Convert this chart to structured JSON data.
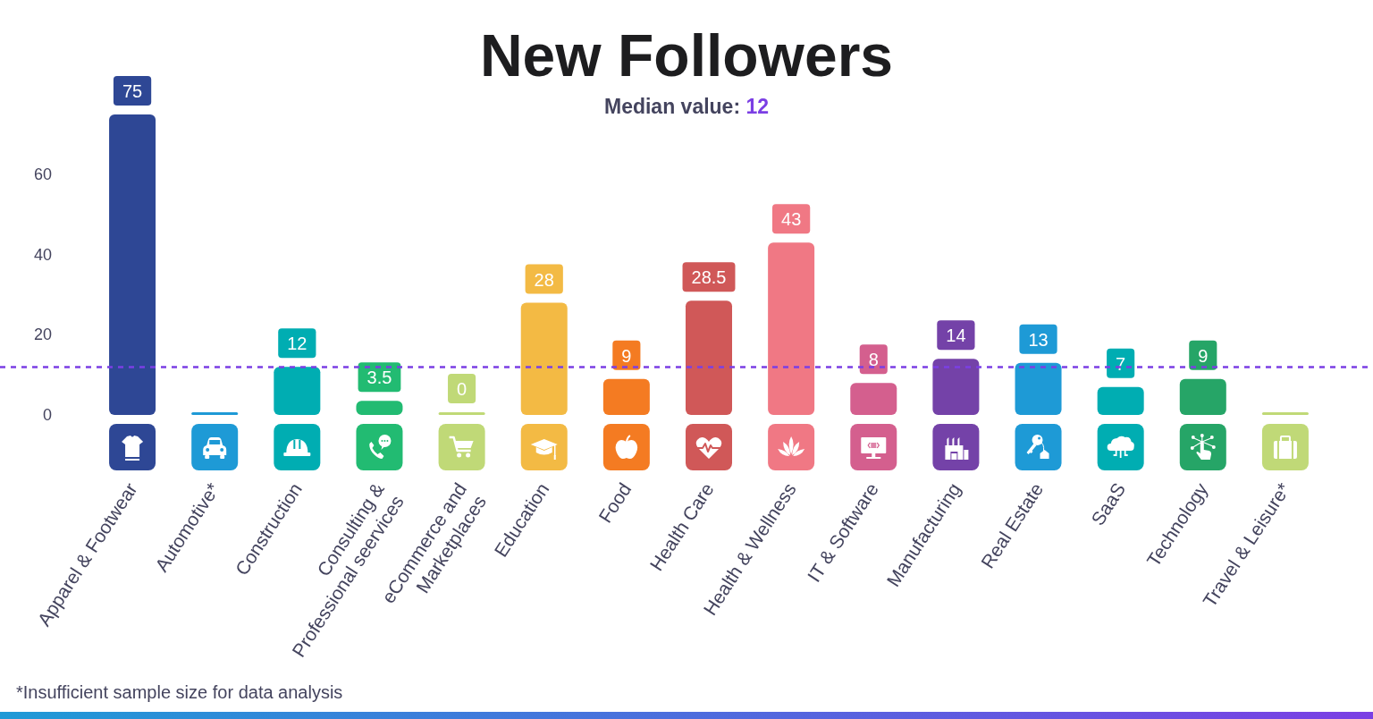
{
  "chart_data": {
    "type": "bar",
    "title": "New Followers",
    "subtitle": "Median value: 12",
    "categories": [
      "Apparel & Footwear",
      "Automotive*",
      "Construction",
      "Consulting &\nProfessional seervices",
      "eCommerce and\nMarketplaces",
      "Education",
      "Food",
      "Health Care",
      "Health & Wellness",
      "IT & Software",
      "Manufacturing",
      "Real Estate",
      "SaaS",
      "Technology",
      "Travel & Leisure*"
    ],
    "values": [
      75,
      0,
      12,
      3.5,
      0,
      28,
      9,
      28.5,
      43,
      8,
      14,
      13,
      7,
      9,
      0
    ],
    "value_labels": [
      "75",
      null,
      "12",
      "3.5",
      "0",
      "28",
      "9",
      "28.5",
      "43",
      "8",
      "14",
      "13",
      "7",
      "9",
      null
    ],
    "colors": [
      "#2e4795",
      "#1e9ad6",
      "#00adb2",
      "#22bb72",
      "#c0d977",
      "#f3ba44",
      "#f47b22",
      "#d05858",
      "#f07884",
      "#d45f8e",
      "#7442a8",
      "#1e9ad6",
      "#00adb2",
      "#26a567",
      "#c0d977"
    ],
    "ylim": [
      0,
      75
    ],
    "yticks": [
      0,
      20,
      40,
      60
    ],
    "ref_lines": [
      {
        "axis": "y",
        "value": 12,
        "color": "#7b3fe4",
        "line_style": "dashed"
      }
    ],
    "annotations": [
      "*Insufficient sample size for data analysis"
    ]
  }
}
